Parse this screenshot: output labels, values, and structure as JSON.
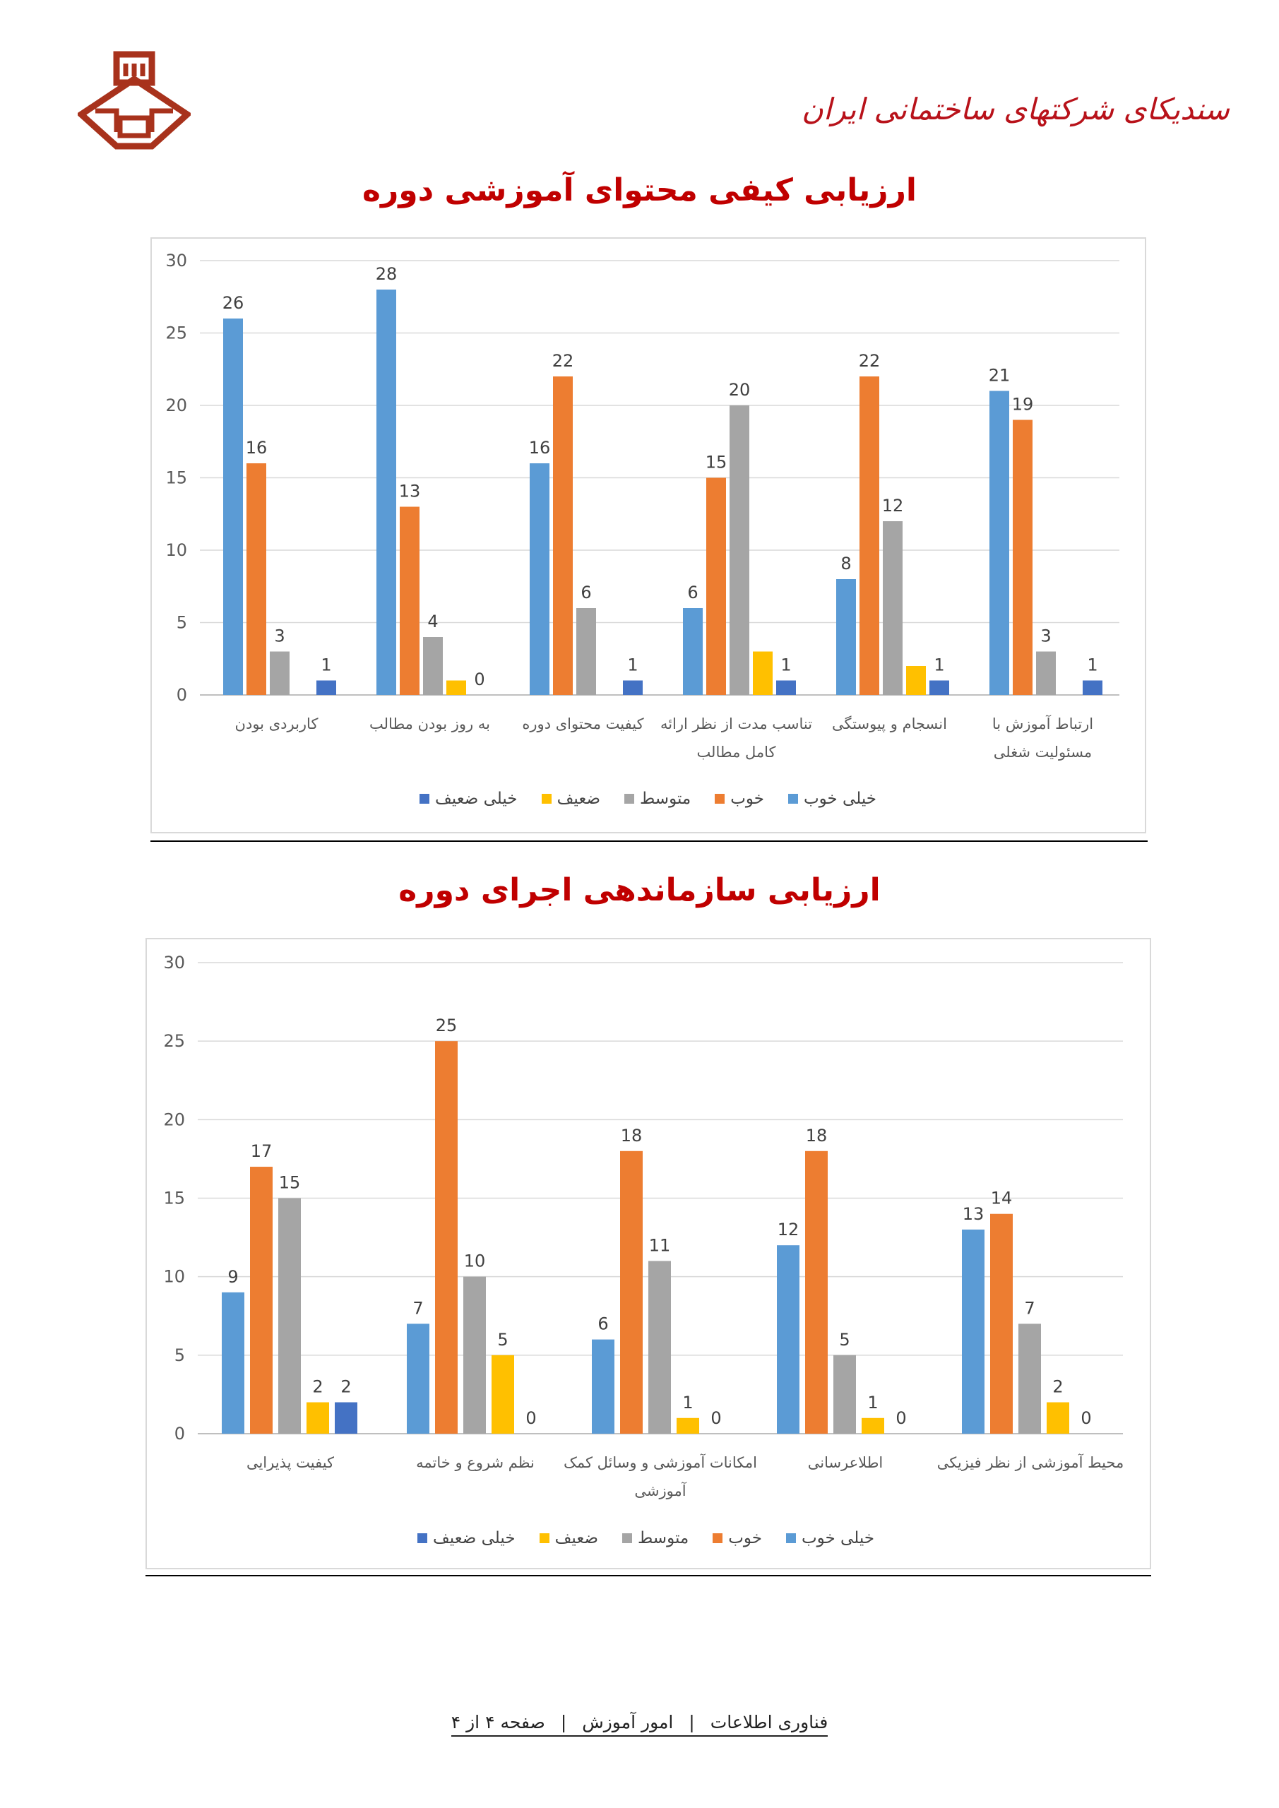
{
  "header": {
    "brand_text": "سندیکای شرکتهای ساختمانی ایران"
  },
  "charts_titles": [
    "ارزیابی کیفی محتوای آموزشی دوره",
    "ارزیابی سازماندهی اجرای دوره"
  ],
  "legend": {
    "items": [
      "خیلی خوب",
      "خوب",
      "متوسط",
      "ضعیف",
      "خیلی ضعیف"
    ],
    "colors": [
      "#5b9bd5",
      "#ed7d31",
      "#a5a5a5",
      "#ffc000",
      "#4472c4"
    ]
  },
  "chart_data": [
    {
      "type": "bar",
      "title": "ارزیابی کیفی محتوای آموزشی دوره",
      "ylim": [
        0,
        30
      ],
      "yticks": [
        0,
        5,
        10,
        15,
        20,
        25,
        30
      ],
      "categories": [
        [
          "کاربردی بودن"
        ],
        [
          "به روز بودن مطالب"
        ],
        [
          "کیفیت محتوای دوره"
        ],
        [
          "تناسب مدت از نظر ارائه",
          "کامل مطالب"
        ],
        [
          "انسجام و پیوستگی"
        ],
        [
          "ارتباط آموزش با",
          "مسئولیت شغلی"
        ]
      ],
      "series": [
        {
          "name": "خیلی خوب",
          "values": [
            26,
            28,
            16,
            6,
            8,
            21
          ]
        },
        {
          "name": "خوب",
          "values": [
            16,
            13,
            22,
            15,
            22,
            19
          ]
        },
        {
          "name": "متوسط",
          "values": [
            3,
            4,
            6,
            20,
            12,
            3
          ]
        },
        {
          "name": "ضعیف",
          "values": [
            null,
            1,
            null,
            3,
            2,
            null
          ]
        },
        {
          "name": "خیلی ضعیف",
          "values": [
            1,
            0,
            1,
            1,
            1,
            1
          ]
        }
      ],
      "labels": [
        [
          "26",
          "16",
          "3",
          null,
          "1"
        ],
        [
          "28",
          "13",
          "4",
          null,
          "0"
        ],
        [
          "16",
          "22",
          "6",
          null,
          "1"
        ],
        [
          "6",
          "15",
          "20",
          null,
          "1"
        ],
        [
          "8",
          "22",
          "12",
          null,
          "1"
        ],
        [
          "21",
          "19",
          "3",
          null,
          "1"
        ]
      ],
      "grid": true,
      "legend_position": "bottom"
    },
    {
      "type": "bar",
      "title": "ارزیابی سازماندهی اجرای دوره",
      "ylim": [
        0,
        30
      ],
      "yticks": [
        0,
        5,
        10,
        15,
        20,
        25,
        30
      ],
      "categories": [
        [
          "کیفیت پذیرایی"
        ],
        [
          "نظم شروع و خاتمه"
        ],
        [
          "امکانات آموزشی و وسائل کمک",
          "آموزشی"
        ],
        [
          "اطلاعرسانی"
        ],
        [
          "محیط آموزشی از نظر فیزیکی"
        ]
      ],
      "series": [
        {
          "name": "خیلی خوب",
          "values": [
            9,
            7,
            6,
            12,
            13
          ]
        },
        {
          "name": "خوب",
          "values": [
            17,
            25,
            18,
            18,
            14
          ]
        },
        {
          "name": "متوسط",
          "values": [
            15,
            10,
            11,
            5,
            7
          ]
        },
        {
          "name": "ضعیف",
          "values": [
            2,
            5,
            1,
            1,
            2
          ]
        },
        {
          "name": "خیلی ضعیف",
          "values": [
            2,
            0,
            0,
            0,
            0
          ]
        }
      ],
      "labels": [
        [
          "9",
          "17",
          "15",
          "2",
          "2"
        ],
        [
          "7",
          "25",
          "10",
          "5",
          "0"
        ],
        [
          "6",
          "18",
          "11",
          "1",
          "0"
        ],
        [
          "12",
          "18",
          "5",
          "1",
          "0"
        ],
        [
          "13",
          "14",
          "7",
          "2",
          "0"
        ]
      ],
      "grid": true,
      "legend_position": "bottom"
    }
  ],
  "footer": {
    "dept_it": "فناوری اطلاعات",
    "dept_training": "امور آموزش",
    "page": "صفحه ۴ از ۴",
    "separator": "|"
  }
}
